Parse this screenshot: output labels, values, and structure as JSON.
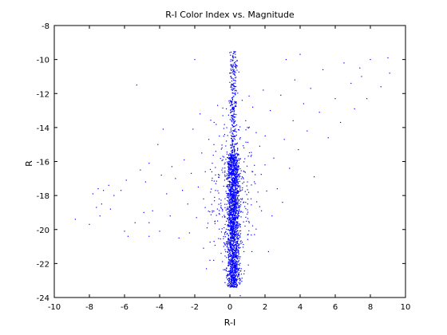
{
  "chart_data": {
    "type": "scatter",
    "title": "R-I Color Index vs. Magnitude",
    "xlabel": "R-I",
    "ylabel": "R",
    "xlim": [
      -10,
      10
    ],
    "ylim": [
      -24,
      -8
    ],
    "xticks": [
      -10,
      -8,
      -6,
      -4,
      -2,
      0,
      2,
      4,
      6,
      8,
      10
    ],
    "yticks": [
      -24,
      -22,
      -20,
      -18,
      -16,
      -14,
      -12,
      -10,
      -8
    ],
    "grid": false,
    "legend": "none",
    "marker_color": "#0000ff",
    "series": [
      {
        "points": [
          [
            -8.8,
            -19.4
          ],
          [
            -8.0,
            -19.7
          ],
          [
            -7.8,
            -17.9
          ],
          [
            -7.6,
            -18.7
          ],
          [
            -7.5,
            -17.6
          ],
          [
            -7.4,
            -19.2
          ],
          [
            -7.3,
            -18.5
          ],
          [
            -7.2,
            -17.7
          ],
          [
            -6.9,
            -17.4
          ],
          [
            -6.8,
            -18.8
          ],
          [
            -6.6,
            -18.0
          ],
          [
            -6.2,
            -17.7
          ],
          [
            -6.0,
            -20.1
          ],
          [
            -5.9,
            -17.1
          ],
          [
            -5.8,
            -20.4
          ],
          [
            -5.4,
            -19.6
          ],
          [
            -5.3,
            -11.5
          ],
          [
            -5.1,
            -16.5
          ],
          [
            -4.9,
            -19.0
          ],
          [
            -4.8,
            -17.2
          ],
          [
            -4.6,
            -16.1
          ],
          [
            -4.6,
            -19.6
          ],
          [
            -4.6,
            -20.4
          ],
          [
            -4.4,
            -18.9
          ],
          [
            -4.1,
            -15.0
          ],
          [
            -4.0,
            -20.1
          ],
          [
            -3.9,
            -16.8
          ],
          [
            -3.8,
            -14.1
          ],
          [
            -3.6,
            -17.9
          ],
          [
            -3.4,
            -19.2
          ],
          [
            -3.3,
            -16.3
          ],
          [
            -3.1,
            -17.0
          ],
          [
            -2.9,
            -20.5
          ],
          [
            -2.7,
            -17.7
          ],
          [
            -2.6,
            -15.9
          ],
          [
            -2.4,
            -18.5
          ],
          [
            -2.3,
            -20.2
          ],
          [
            -2.2,
            -16.7
          ],
          [
            -2.1,
            -14.1
          ],
          [
            -2.0,
            -10.0
          ],
          [
            -1.9,
            -19.3
          ],
          [
            -1.8,
            -17.5
          ],
          [
            -1.7,
            -13.2
          ],
          [
            -1.6,
            -15.5
          ],
          [
            -1.5,
            -21.1
          ],
          [
            -1.5,
            -18.2
          ],
          [
            -1.4,
            -16.6
          ],
          [
            -1.3,
            -19.9
          ],
          [
            -1.2,
            -14.7
          ],
          [
            -1.1,
            -17.8
          ],
          [
            -1.0,
            -18.9
          ],
          [
            -1.0,
            -16.1
          ],
          [
            -0.9,
            -13.7
          ],
          [
            -0.9,
            -20.7
          ],
          [
            -0.8,
            -15.4
          ],
          [
            -0.8,
            -17.3
          ],
          [
            -0.7,
            -12.7
          ],
          [
            -0.7,
            -19.5
          ],
          [
            -0.6,
            -16.8
          ],
          [
            -0.6,
            -14.5
          ],
          [
            -0.5,
            -18.6
          ],
          [
            -0.5,
            -21.4
          ],
          [
            -0.4,
            -15.9
          ],
          [
            -0.4,
            -13.3
          ],
          [
            -0.3,
            -17.1
          ],
          [
            -0.3,
            -20.2
          ],
          [
            -0.2,
            -14.8
          ],
          [
            -0.2,
            -12.9
          ],
          [
            -0.1,
            -16.3
          ],
          [
            -0.1,
            -22.1
          ],
          [
            0.6,
            -14.6
          ],
          [
            0.6,
            -19.7
          ],
          [
            0.7,
            -12.4
          ],
          [
            0.7,
            -16.9
          ],
          [
            0.8,
            -15.2
          ],
          [
            0.8,
            -21.3
          ],
          [
            0.9,
            -13.6
          ],
          [
            0.9,
            -18.4
          ],
          [
            1.0,
            -17.2
          ],
          [
            1.0,
            -14.0
          ],
          [
            1.1,
            -19.6
          ],
          [
            1.2,
            -15.7
          ],
          [
            1.3,
            -12.8
          ],
          [
            1.3,
            -16.6
          ],
          [
            1.4,
            -20.3
          ],
          [
            1.5,
            -14.3
          ],
          [
            1.6,
            -17.8
          ],
          [
            1.7,
            -15.1
          ],
          [
            1.8,
            -18.9
          ],
          [
            1.9,
            -11.8
          ],
          [
            2.0,
            -16.2
          ],
          [
            2.2,
            -21.3
          ],
          [
            2.3,
            -13.0
          ],
          [
            2.4,
            -19.2
          ],
          [
            2.5,
            -15.8
          ],
          [
            2.7,
            -17.6
          ],
          [
            2.9,
            -12.1
          ],
          [
            3.0,
            -18.4
          ],
          [
            3.1,
            -14.7
          ],
          [
            3.2,
            -10.0
          ],
          [
            3.4,
            -16.4
          ],
          [
            3.6,
            -13.6
          ],
          [
            3.7,
            -11.2
          ],
          [
            3.9,
            -15.3
          ],
          [
            4.0,
            -9.7
          ],
          [
            4.2,
            -12.6
          ],
          [
            4.4,
            -14.2
          ],
          [
            4.6,
            -11.7
          ],
          [
            4.8,
            -16.9
          ],
          [
            5.1,
            -13.1
          ],
          [
            5.3,
            -10.6
          ],
          [
            5.6,
            -14.6
          ],
          [
            6.0,
            -12.3
          ],
          [
            6.3,
            -13.7
          ],
          [
            6.5,
            -10.2
          ],
          [
            6.9,
            -11.4
          ],
          [
            7.1,
            -12.9
          ],
          [
            7.4,
            -10.5
          ],
          [
            7.5,
            -11.0
          ],
          [
            7.8,
            -12.3
          ],
          [
            8.0,
            -10.0
          ],
          [
            8.6,
            -11.6
          ],
          [
            9.0,
            -9.9
          ],
          [
            9.1,
            -10.8
          ]
        ],
        "dense_core": {
          "center_x": 0.2,
          "x_spread": 0.18,
          "y_range": [
            -23.4,
            -9.5
          ],
          "peak_y_range": [
            -22.5,
            -15.5
          ]
        }
      }
    ]
  }
}
